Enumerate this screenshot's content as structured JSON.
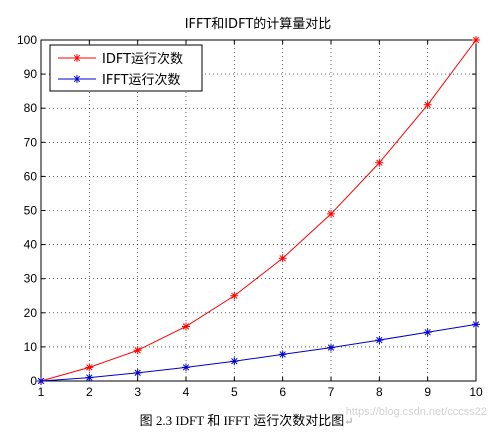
{
  "chart_data": {
    "type": "line",
    "title": "IFFT和IDFT的计算量对比",
    "xlabel": "",
    "ylabel": "",
    "x": [
      1,
      2,
      3,
      4,
      5,
      6,
      7,
      8,
      9,
      10
    ],
    "xlim": [
      1,
      10
    ],
    "ylim": [
      0,
      100
    ],
    "xticks": [
      1,
      2,
      3,
      4,
      5,
      6,
      7,
      8,
      9,
      10
    ],
    "yticks": [
      0,
      10,
      20,
      30,
      40,
      50,
      60,
      70,
      80,
      90,
      100
    ],
    "grid": true,
    "legend_position": "top-left",
    "series": [
      {
        "name": "IDFT运行次数",
        "color": "#ff0000",
        "marker": "star",
        "values": [
          0,
          4,
          9,
          16,
          25,
          36,
          49,
          64,
          81,
          100
        ]
      },
      {
        "name": "IFFT运行次数",
        "color": "#0000cc",
        "marker": "star",
        "values": [
          0,
          1,
          2.4,
          4,
          5.8,
          7.8,
          9.8,
          12,
          14.3,
          16.6
        ]
      }
    ]
  },
  "caption": {
    "text": "图 2.3 IDFT 和 IFFT 运行次数对比图",
    "mark": "↵"
  },
  "watermark": "https://blog.csdn.net/cccss22"
}
